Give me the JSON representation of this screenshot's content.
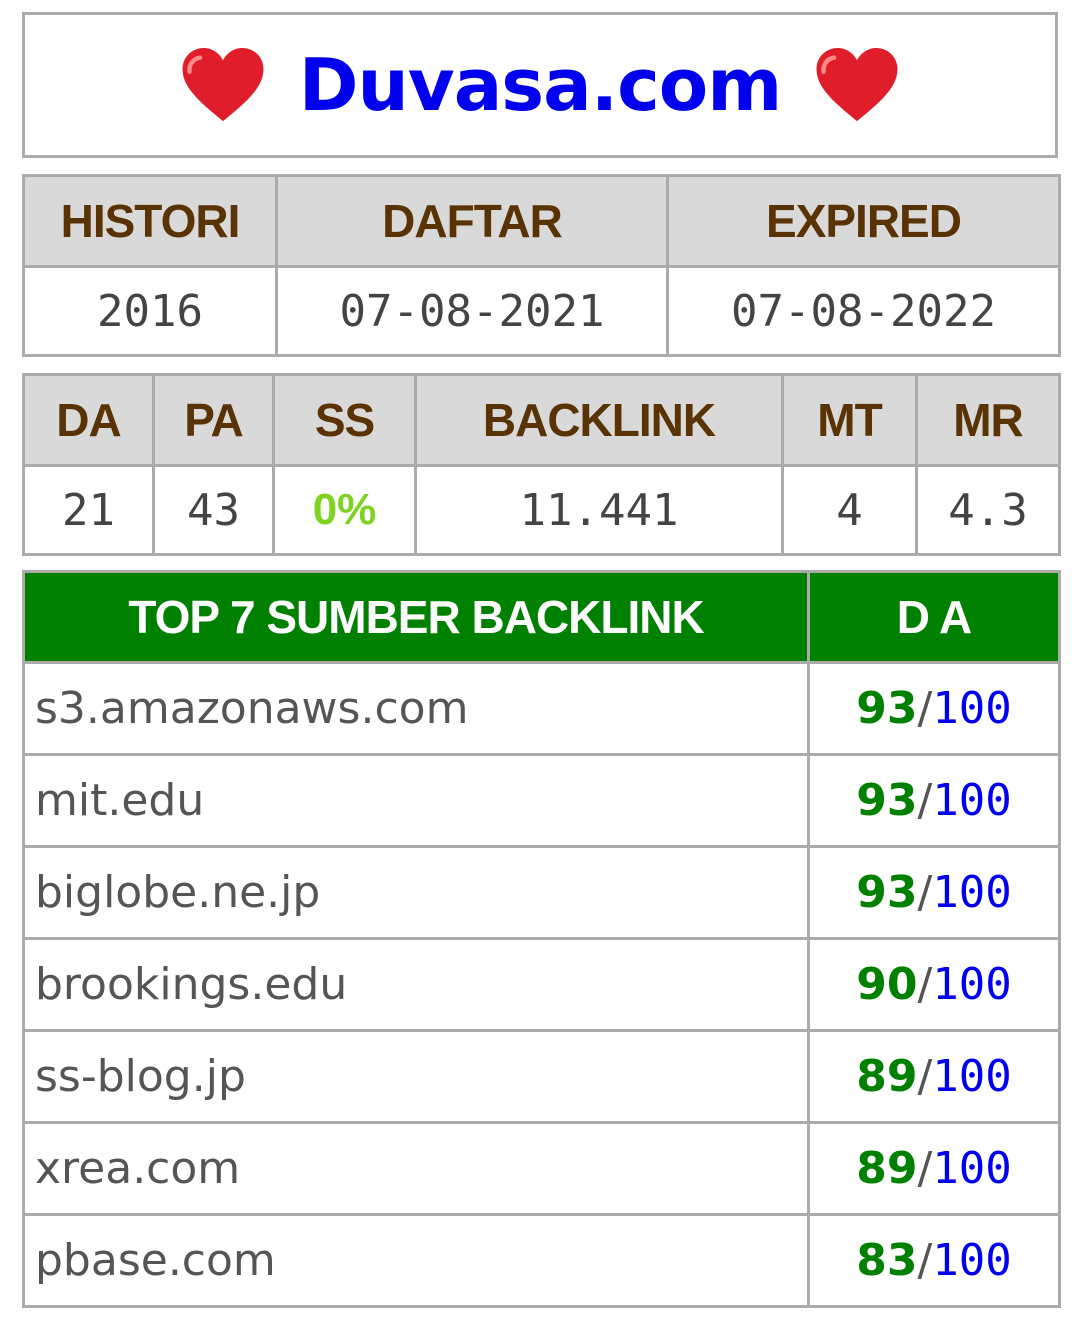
{
  "title": "Duvasa.com",
  "accent_colors": {
    "title": "#0000ee",
    "heart": "#e01e2b",
    "header_green": "#008000",
    "score_green": "#008000",
    "ss_green": "#7ed321",
    "header_text_brown": "#5a3304"
  },
  "icons": {
    "left": "heart-icon",
    "right": "heart-icon"
  },
  "domain_info": {
    "headers": [
      "HISTORI",
      "DAFTAR",
      "EXPIRED"
    ],
    "values": [
      "2016",
      "07-08-2021",
      "07-08-2022"
    ]
  },
  "metrics": {
    "headers": [
      "DA",
      "PA",
      "SS",
      "BACKLINK",
      "MT",
      "MR"
    ],
    "values": [
      "21",
      "43",
      "0%",
      "11.441",
      "4",
      "4.3"
    ]
  },
  "backlinks": {
    "header_source": "TOP 7 SUMBER BACKLINK",
    "header_da": "D A",
    "separator": "/",
    "rows": [
      {
        "domain": "s3.amazonaws.com",
        "da": "93",
        "max": "100"
      },
      {
        "domain": "mit.edu",
        "da": "93",
        "max": "100"
      },
      {
        "domain": "biglobe.ne.jp",
        "da": "93",
        "max": "100"
      },
      {
        "domain": "brookings.edu",
        "da": "90",
        "max": "100"
      },
      {
        "domain": "ss-blog.jp",
        "da": "89",
        "max": "100"
      },
      {
        "domain": "xrea.com",
        "da": "89",
        "max": "100"
      },
      {
        "domain": "pbase.com",
        "da": "83",
        "max": "100"
      }
    ]
  }
}
